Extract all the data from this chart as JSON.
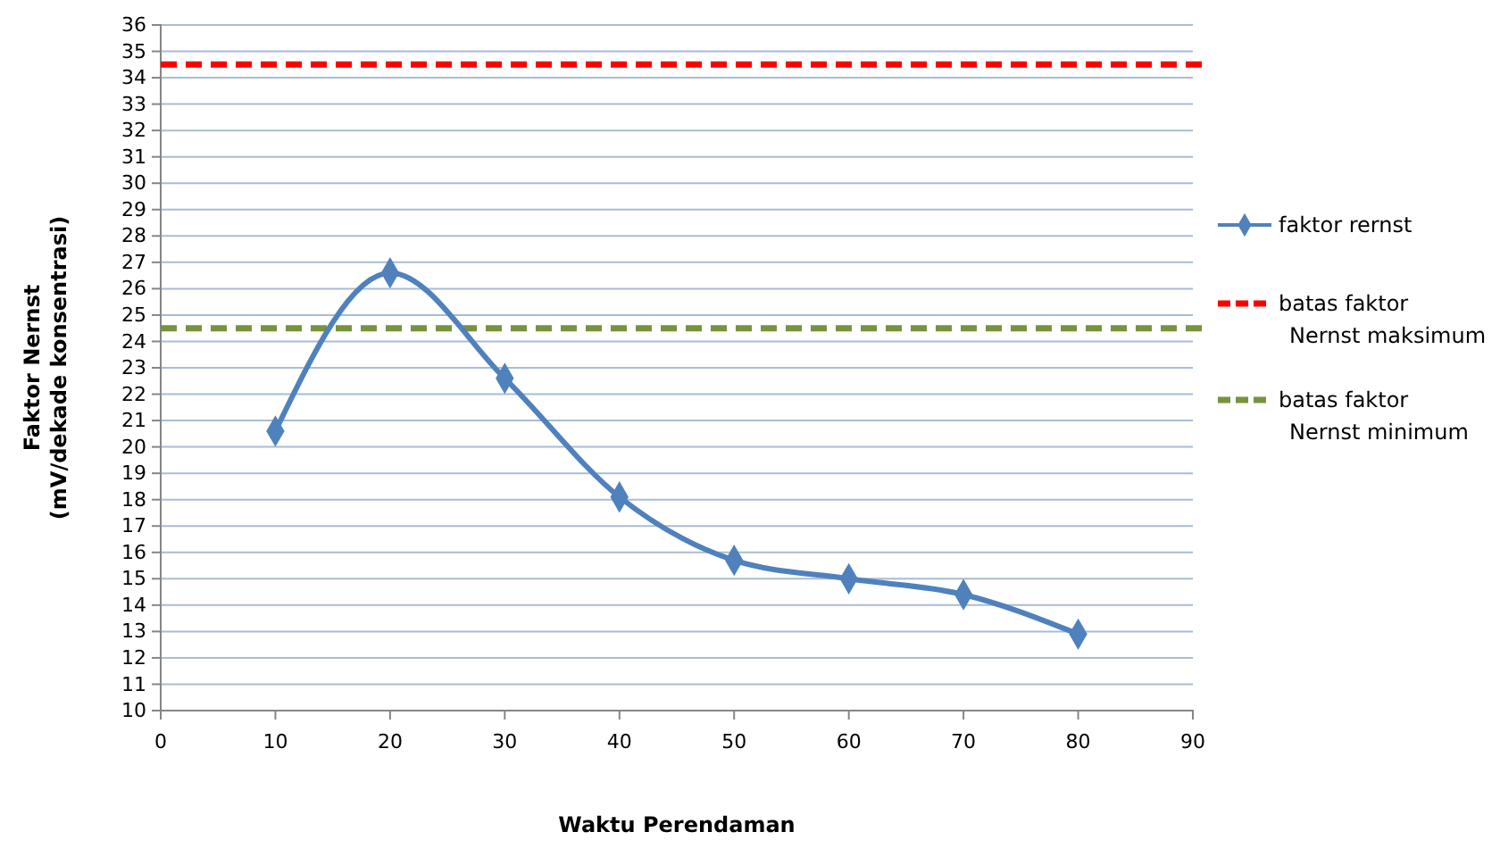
{
  "chart_data": {
    "type": "line",
    "xlabel": "Waktu Perendaman",
    "ylabel": "Faktor Nernst\n(mV/dekade konsentrasi)",
    "x": [
      10,
      20,
      30,
      40,
      50,
      60,
      70,
      80
    ],
    "series": [
      {
        "name": "faktor rernst",
        "color": "#4f81bd",
        "values": [
          20.6,
          26.6,
          22.6,
          18.1,
          15.7,
          15.0,
          14.4,
          12.9
        ]
      }
    ],
    "ref_lines": [
      {
        "axis": "y",
        "value": 34.5,
        "label": "batas faktor Nernst maksimum",
        "color": "#ff0000",
        "line_style": "dashed"
      },
      {
        "axis": "y",
        "value": 24.5,
        "label": "batas faktor Nernst minimum",
        "color": "#77933c",
        "line_style": "dashed"
      }
    ],
    "xlim": [
      0,
      90
    ],
    "xticks": [
      0,
      10,
      20,
      30,
      40,
      50,
      60,
      70,
      80,
      90
    ],
    "ylim": [
      10,
      36
    ],
    "yticks": [
      10,
      11,
      12,
      13,
      14,
      15,
      16,
      17,
      18,
      19,
      20,
      21,
      22,
      23,
      24,
      25,
      26,
      27,
      28,
      29,
      30,
      31,
      32,
      33,
      34,
      35,
      36
    ],
    "grid": "y",
    "legend": "right",
    "marker": "diamond",
    "line_style": "solid"
  }
}
